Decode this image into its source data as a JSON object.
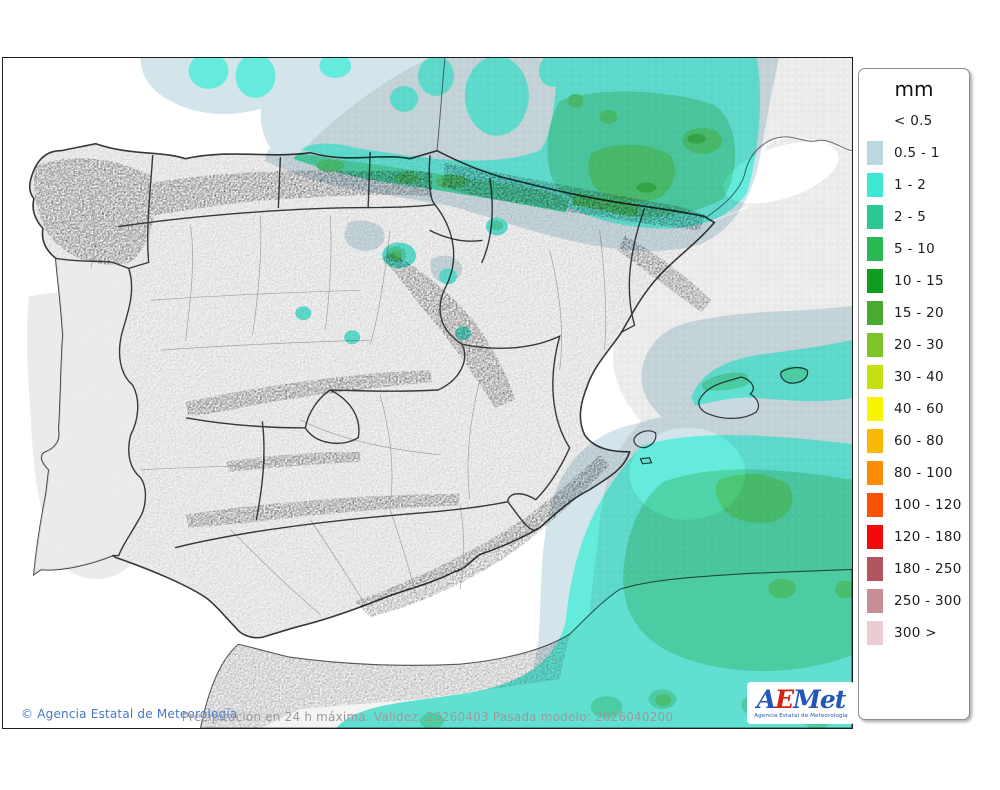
{
  "legend": {
    "title": "mm",
    "items": [
      {
        "label": "< 0.5",
        "color": null
      },
      {
        "label": "0.5 - 1",
        "color": "#b9d8e1"
      },
      {
        "label": "1 - 2",
        "color": "#3ee7d3"
      },
      {
        "label": "2 - 5",
        "color": "#2cc996"
      },
      {
        "label": "5 - 10",
        "color": "#29b954"
      },
      {
        "label": "10 - 15",
        "color": "#0f9e1d"
      },
      {
        "label": "15 - 20",
        "color": "#49aa31"
      },
      {
        "label": "20 - 30",
        "color": "#7ec427"
      },
      {
        "label": "30 - 40",
        "color": "#c5df10"
      },
      {
        "label": "40 - 60",
        "color": "#f8f500"
      },
      {
        "label": "60 - 80",
        "color": "#f9b806"
      },
      {
        "label": "80 - 100",
        "color": "#f98d05"
      },
      {
        "label": "100 - 120",
        "color": "#fa5108"
      },
      {
        "label": "120 - 180",
        "color": "#f50a0a"
      },
      {
        "label": "180 - 250",
        "color": "#b2555e"
      },
      {
        "label": "250 - 300",
        "color": "#c78e96"
      },
      {
        "label": "300 >",
        "color": "#ebccd2"
      }
    ]
  },
  "footer": {
    "copyright": "© Agencia Estatal de Meteorología",
    "caption": "Precipitación en 24 h máxima. Validez: 20260403 Pasada modelo: 2026040200"
  },
  "logo": {
    "part_a": "A",
    "part_e": "E",
    "part_met": "Met",
    "subtext": "Agencia Estatal de Meteorología",
    "blue": "#2257b8",
    "red": "#d42313"
  },
  "map": {
    "colors": {
      "lt05": "#ebebeb",
      "pc1": "#cde1e8",
      "pc2": "#4fe9d6",
      "pc3": "#38cf9e",
      "pc4": "#34bf5f",
      "pc5": "#1ba62f",
      "land": "#f2f2f2",
      "foreign_land": "#fdfdfd",
      "sea": "#ffffff"
    }
  }
}
